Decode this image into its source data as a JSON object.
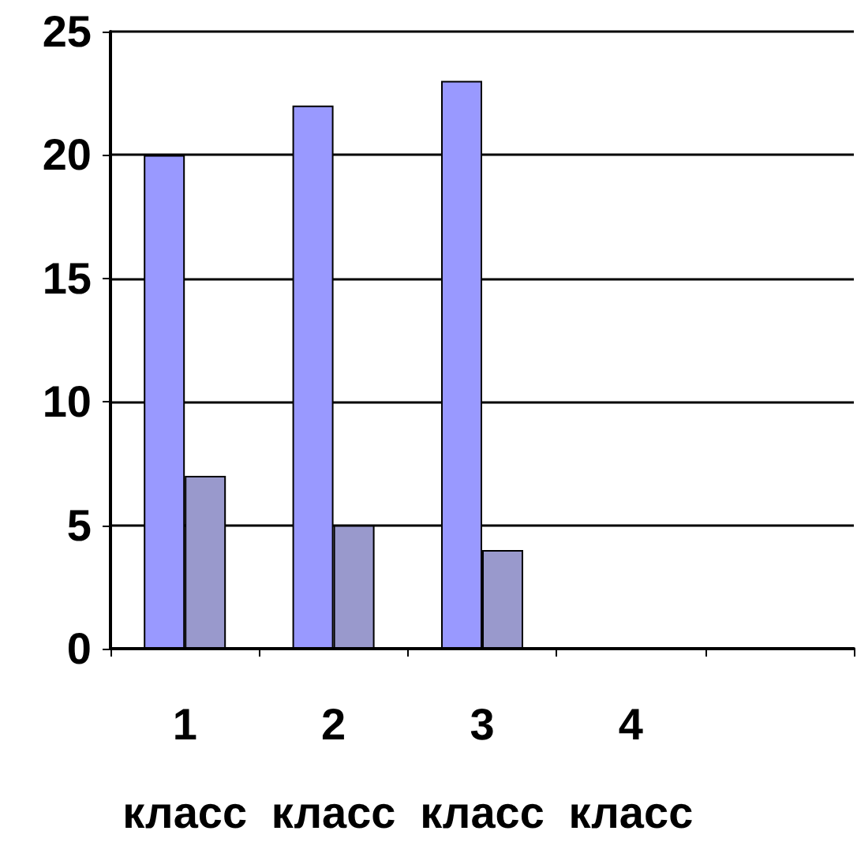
{
  "chart_data": {
    "type": "bar",
    "categories": [
      "1 класс",
      "2 класс",
      "3 класс",
      "4 класс",
      null
    ],
    "series": [
      {
        "color": "#9999ff",
        "values": [
          20,
          22,
          23,
          null,
          null
        ]
      },
      {
        "color": "#9999cc",
        "values": [
          7,
          5,
          4,
          null,
          null
        ]
      }
    ],
    "ylim": [
      0,
      25
    ],
    "yticks": [
      0,
      5,
      10,
      15,
      20,
      25
    ],
    "grid": "y"
  }
}
